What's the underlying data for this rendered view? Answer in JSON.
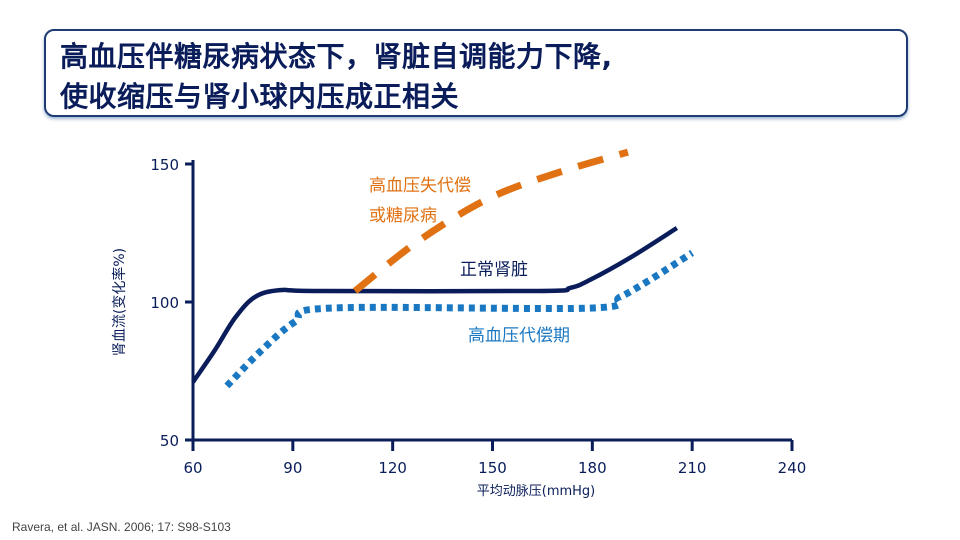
{
  "title": {
    "line1": "高血压伴糖尿病状态下，肾脏自调能力下降,",
    "line2": "使收缩压与肾小球内压成正相关"
  },
  "citation": "Ravera, et al. JASN. 2006; 17: S98-S103",
  "chart_data": {
    "type": "line",
    "xlabel": "平均动脉压(mmHg)",
    "ylabel": "肾血流(变化率%)",
    "xlim": [
      60,
      240
    ],
    "ylim": [
      50,
      150
    ],
    "xticks": [
      60,
      90,
      120,
      150,
      180,
      210,
      240
    ],
    "yticks": [
      50,
      100,
      150
    ],
    "grid": false,
    "series": [
      {
        "name": "正常肾脏",
        "color": "#0a1d5a",
        "style": "solid",
        "x": [
          60,
          66.6,
          72.6,
          78.6,
          86.1,
          98.2,
          164.3,
          173.3,
          179.3,
          191.3,
          205.4
        ],
        "y": [
          71,
          82.6,
          94.2,
          101.8,
          104.3,
          104,
          104,
          105.1,
          108,
          116,
          126.8
        ]
      },
      {
        "name": "高血压代偿期",
        "color": "#1a78c2",
        "style": "dotted",
        "x": [
          70.2,
          80.1,
          90.6,
          101.2,
          179.3,
          188.3,
          197.3,
          210
        ],
        "y": [
          69.6,
          81.9,
          92.8,
          97.8,
          97.8,
          101.8,
          108,
          117.8
        ]
      },
      {
        "name": "高血压失代偿\n或糖尿病",
        "label_lines": [
          "高血压失代偿",
          "或糖尿病"
        ],
        "color": "#e07214",
        "style": "dashed",
        "x": [
          108.7,
          128.2,
          149.2,
          170.3,
          190.7
        ],
        "y": [
          104,
          122.5,
          137.7,
          147.1,
          154.3
        ]
      }
    ]
  }
}
